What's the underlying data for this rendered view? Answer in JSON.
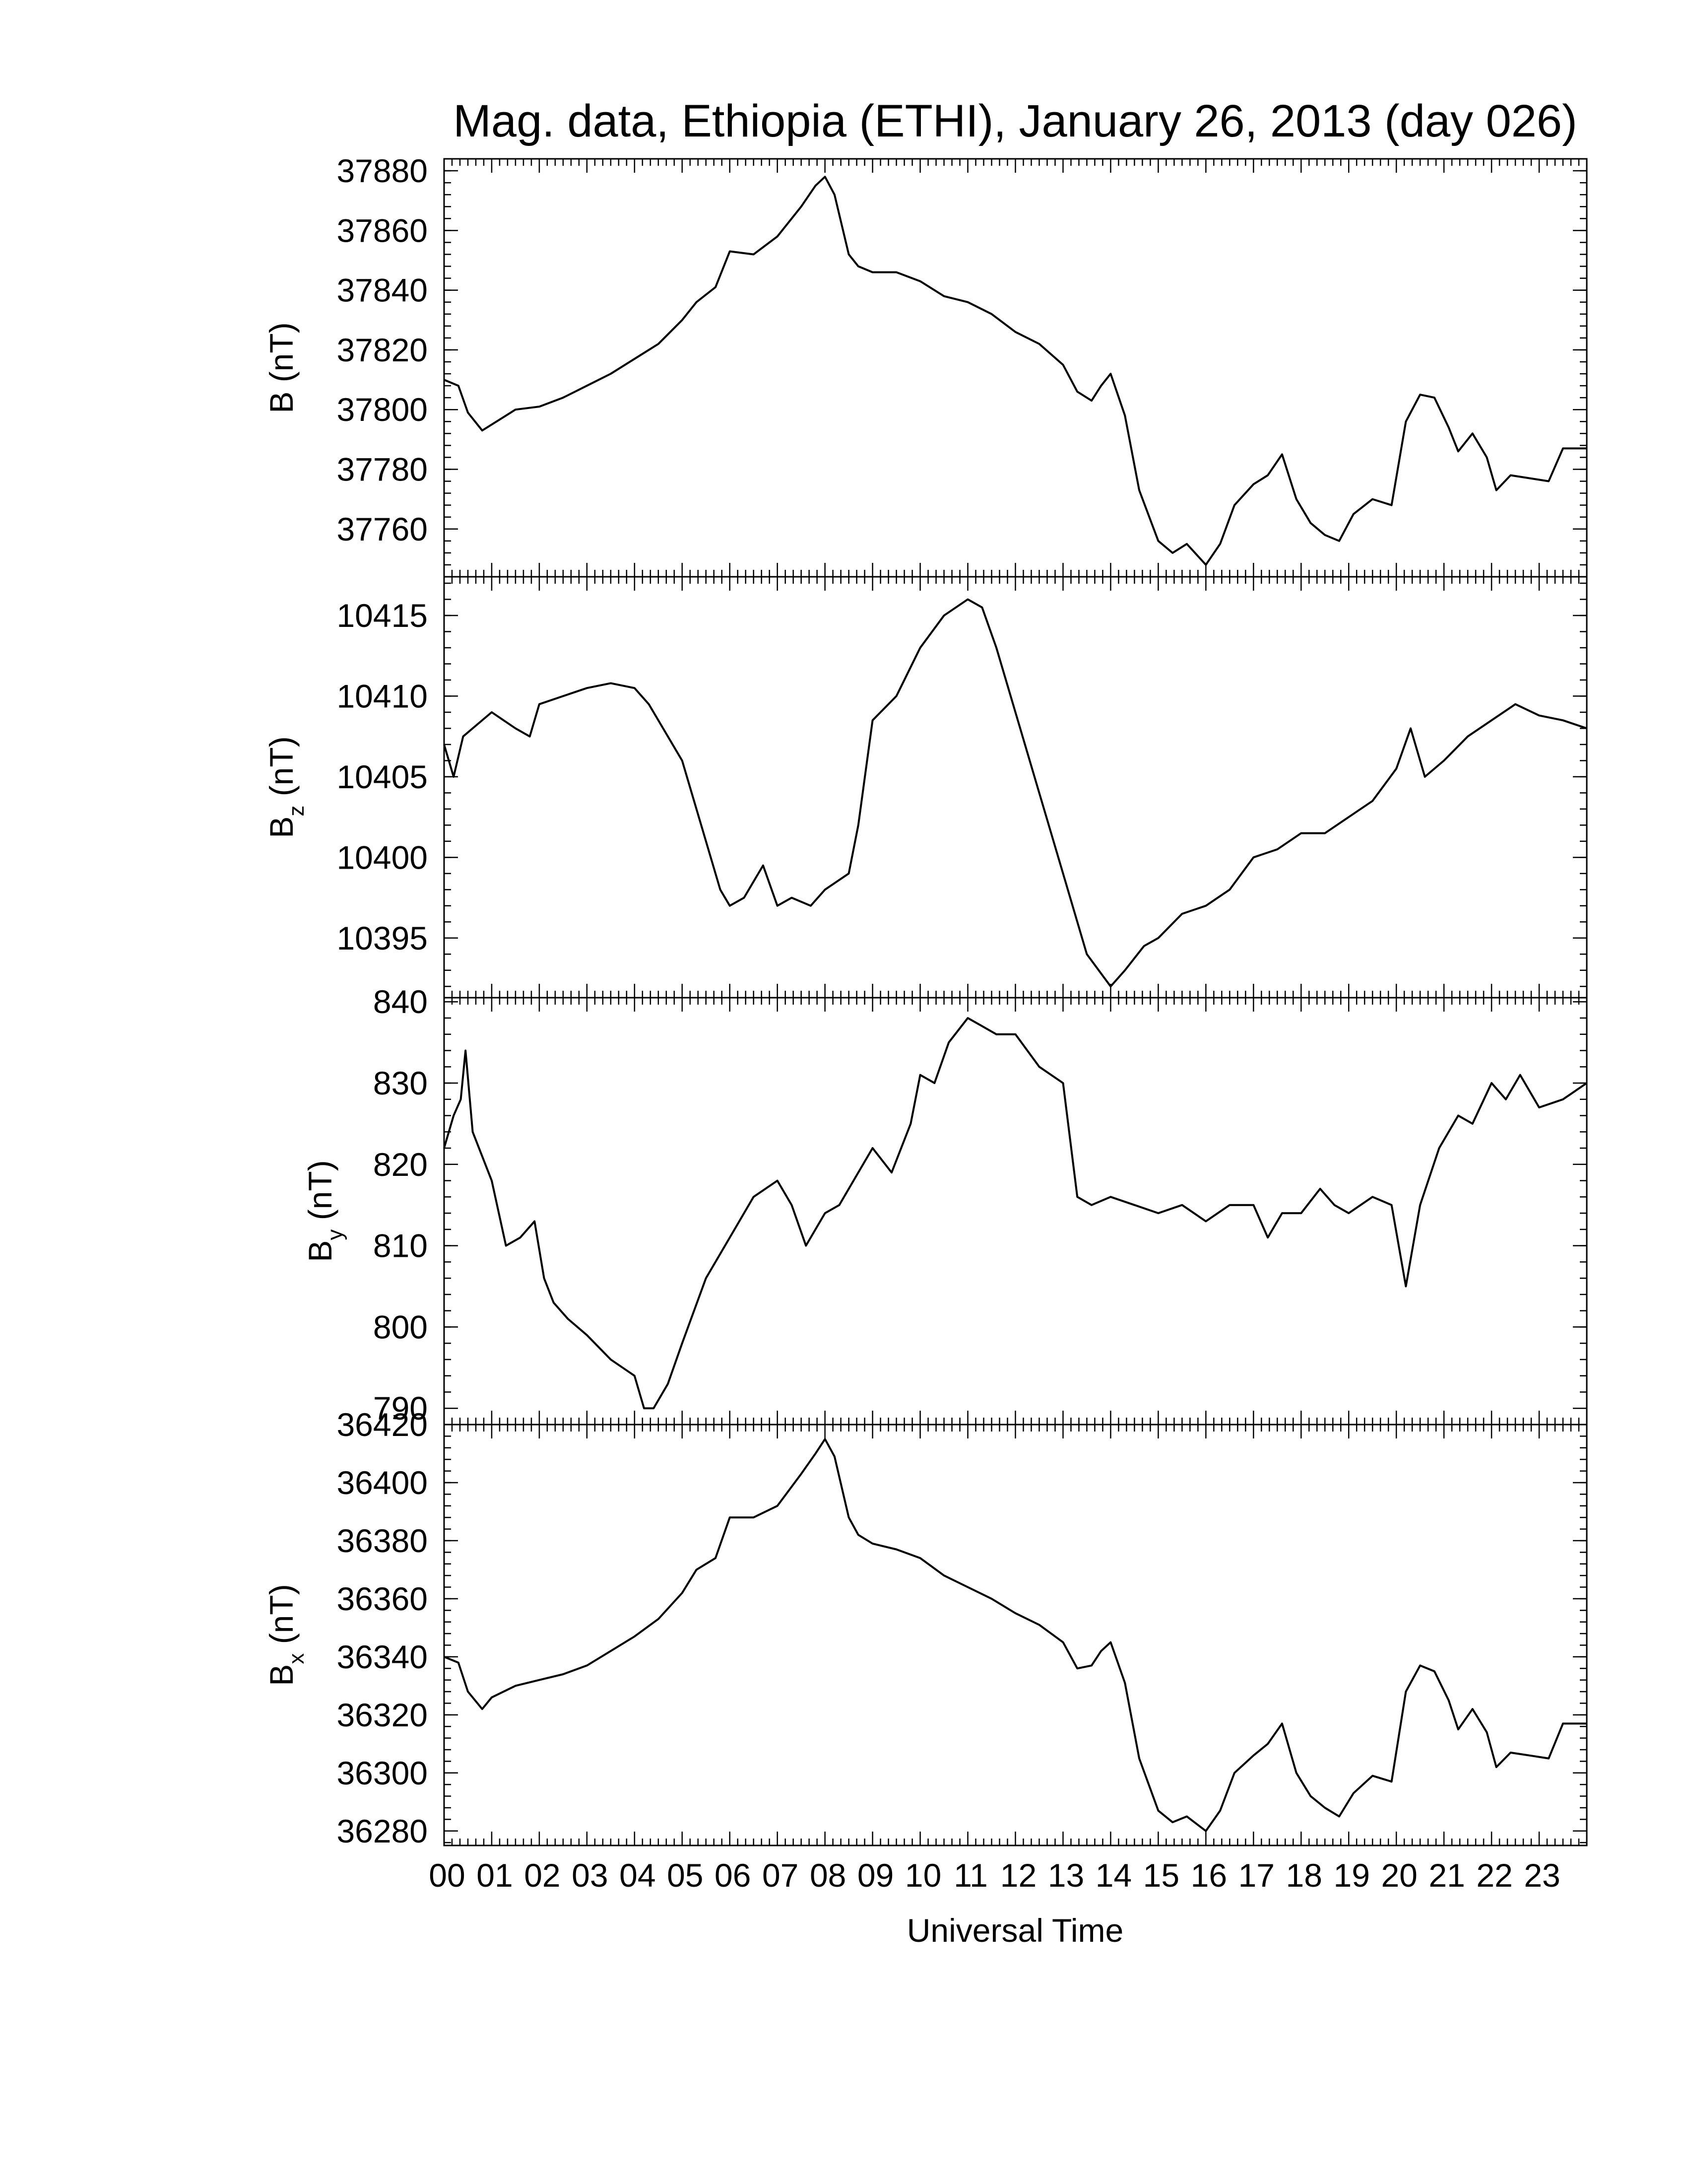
{
  "chart_data": {
    "type": "line",
    "title": "Mag. data, Ethiopia (ETHI), January 26, 2013 (day 026)",
    "xlabel": "Universal Time",
    "x_unit": "hours",
    "xlim": [
      0,
      24
    ],
    "x_ticks": [
      0,
      1,
      2,
      3,
      4,
      5,
      6,
      7,
      8,
      9,
      10,
      11,
      12,
      13,
      14,
      15,
      16,
      17,
      18,
      19,
      20,
      21,
      22,
      23
    ],
    "x_tick_labels": [
      "00",
      "01",
      "02",
      "03",
      "04",
      "05",
      "06",
      "07",
      "08",
      "09",
      "10",
      "11",
      "12",
      "13",
      "14",
      "15",
      "16",
      "17",
      "18",
      "19",
      "20",
      "21",
      "22",
      "23"
    ],
    "line_color": "#000000",
    "panels": [
      {
        "ylabel": "B (nT)",
        "ylabel_main": "B",
        "ylabel_sub": "",
        "ylabel_unit": "(nT)",
        "ylim": [
          37744,
          37884
        ],
        "y_ticks": [
          37760,
          37780,
          37800,
          37820,
          37840,
          37860,
          37880
        ],
        "x": [
          0,
          0.3,
          0.5,
          0.8,
          1.0,
          1.5,
          2.0,
          2.5,
          3.0,
          3.5,
          4.0,
          4.5,
          5.0,
          5.3,
          5.7,
          6.0,
          6.5,
          7.0,
          7.5,
          7.8,
          8.0,
          8.2,
          8.5,
          8.7,
          9.0,
          9.5,
          10.0,
          10.5,
          11.0,
          11.5,
          12.0,
          12.5,
          13.0,
          13.3,
          13.6,
          13.8,
          14.0,
          14.3,
          14.6,
          15.0,
          15.3,
          15.6,
          16.0,
          16.3,
          16.6,
          17.0,
          17.3,
          17.6,
          17.9,
          18.2,
          18.5,
          18.8,
          19.1,
          19.5,
          19.9,
          20.2,
          20.5,
          20.8,
          21.1,
          21.3,
          21.6,
          21.9,
          22.1,
          22.4,
          22.8,
          23.2,
          23.5,
          24.0
        ],
        "y": [
          37810,
          37808,
          37799,
          37793,
          37795,
          37800,
          37801,
          37804,
          37808,
          37812,
          37817,
          37822,
          37830,
          37836,
          37841,
          37853,
          37852,
          37858,
          37868,
          37875,
          37878,
          37872,
          37852,
          37848,
          37846,
          37846,
          37843,
          37838,
          37836,
          37832,
          37826,
          37822,
          37815,
          37806,
          37803,
          37808,
          37812,
          37798,
          37773,
          37756,
          37752,
          37755,
          37748,
          37755,
          37768,
          37775,
          37778,
          37785,
          37770,
          37762,
          37758,
          37756,
          37765,
          37770,
          37768,
          37796,
          37805,
          37804,
          37794,
          37786,
          37792,
          37784,
          37773,
          37778,
          37777,
          37776,
          37787,
          37787
        ]
      },
      {
        "ylabel": "Bz (nT)",
        "ylabel_main": "B",
        "ylabel_sub": "z",
        "ylabel_unit": "(nT)",
        "ylim": [
          10391.3,
          10417.4
        ],
        "y_ticks": [
          10395,
          10400,
          10405,
          10410,
          10415
        ],
        "x": [
          0,
          0.2,
          0.4,
          0.6,
          1.0,
          1.5,
          1.8,
          2.0,
          2.5,
          3.0,
          3.5,
          4.0,
          4.3,
          4.6,
          5.0,
          5.5,
          5.8,
          6.0,
          6.3,
          6.7,
          7.0,
          7.3,
          7.7,
          8.0,
          8.5,
          8.7,
          9.0,
          9.5,
          10.0,
          10.5,
          11.0,
          11.3,
          11.6,
          12.0,
          12.5,
          13.0,
          13.5,
          14.0,
          14.3,
          14.7,
          15.0,
          15.5,
          16.0,
          16.5,
          17.0,
          17.5,
          18.0,
          18.5,
          19.0,
          19.5,
          20.0,
          20.3,
          20.6,
          21.0,
          21.5,
          22.0,
          22.5,
          23.0,
          23.5,
          24.0
        ],
        "y": [
          10407,
          10405,
          10407.5,
          10408,
          10409,
          10408,
          10407.5,
          10409.5,
          10410,
          10410.5,
          10410.8,
          10410.5,
          10409.5,
          10408,
          10406,
          10401,
          10398,
          10397,
          10397.5,
          10399.5,
          10397,
          10397.5,
          10397,
          10398,
          10399,
          10402,
          10408.5,
          10410,
          10413,
          10415,
          10416,
          10415.5,
          10413,
          10409,
          10404,
          10399,
          10394,
          10392,
          10393,
          10394.5,
          10395,
          10396.5,
          10397,
          10398,
          10400,
          10400.5,
          10401.5,
          10401.5,
          10402.5,
          10403.5,
          10405.5,
          10408,
          10405,
          10406,
          10407.5,
          10408.5,
          10409.5,
          10408.8,
          10408.5,
          10408
        ]
      },
      {
        "ylabel": "By (nT)",
        "ylabel_main": "B",
        "ylabel_sub": "y",
        "ylabel_unit": "(nT)",
        "ylim": [
          788,
          840.5
        ],
        "y_ticks": [
          790,
          800,
          810,
          820,
          830,
          840
        ],
        "x": [
          0,
          0.2,
          0.35,
          0.45,
          0.6,
          1.0,
          1.3,
          1.6,
          1.9,
          2.1,
          2.3,
          2.6,
          3.0,
          3.5,
          4.0,
          4.2,
          4.4,
          4.7,
          5.0,
          5.5,
          6.0,
          6.5,
          7.0,
          7.3,
          7.6,
          8.0,
          8.3,
          8.6,
          9.0,
          9.4,
          9.8,
          10.0,
          10.3,
          10.6,
          11.0,
          11.3,
          11.6,
          12.0,
          12.5,
          13.0,
          13.3,
          13.6,
          14.0,
          14.5,
          15.0,
          15.5,
          16.0,
          16.5,
          17.0,
          17.3,
          17.6,
          18.0,
          18.4,
          18.7,
          19.0,
          19.5,
          19.9,
          20.2,
          20.5,
          20.9,
          21.3,
          21.6,
          22.0,
          22.3,
          22.6,
          23.0,
          23.5,
          24.0
        ],
        "y": [
          822,
          826,
          828,
          834,
          824,
          818,
          810,
          811,
          813,
          806,
          803,
          801,
          799,
          796,
          794,
          790,
          790,
          793,
          798,
          806,
          811,
          816,
          818,
          815,
          810,
          814,
          815,
          818,
          822,
          819,
          825,
          831,
          830,
          835,
          838,
          837,
          836,
          836,
          832,
          830,
          816,
          815,
          816,
          815,
          814,
          815,
          813,
          815,
          815,
          811,
          814,
          814,
          817,
          815,
          814,
          816,
          815,
          805,
          815,
          822,
          826,
          825,
          830,
          828,
          831,
          827,
          828,
          830
        ]
      },
      {
        "ylabel": "Bx (nT)",
        "ylabel_main": "B",
        "ylabel_sub": "x",
        "ylabel_unit": "(nT)",
        "ylim": [
          36275,
          36420
        ],
        "y_ticks": [
          36280,
          36300,
          36320,
          36340,
          36360,
          36380,
          36400,
          36420
        ],
        "x": [
          0,
          0.3,
          0.5,
          0.8,
          1.0,
          1.5,
          2.0,
          2.5,
          3.0,
          3.5,
          4.0,
          4.5,
          5.0,
          5.3,
          5.7,
          6.0,
          6.5,
          7.0,
          7.5,
          7.8,
          8.0,
          8.2,
          8.5,
          8.7,
          9.0,
          9.5,
          10.0,
          10.5,
          11.0,
          11.5,
          12.0,
          12.5,
          13.0,
          13.3,
          13.6,
          13.8,
          14.0,
          14.3,
          14.6,
          15.0,
          15.3,
          15.6,
          16.0,
          16.3,
          16.6,
          17.0,
          17.3,
          17.6,
          17.9,
          18.2,
          18.5,
          18.8,
          19.1,
          19.5,
          19.9,
          20.2,
          20.5,
          20.8,
          21.1,
          21.3,
          21.6,
          21.9,
          22.1,
          22.4,
          22.8,
          23.2,
          23.5,
          24.0
        ],
        "y": [
          36340,
          36338,
          36328,
          36322,
          36326,
          36330,
          36332,
          36334,
          36337,
          36342,
          36347,
          36353,
          36362,
          36370,
          36374,
          36388,
          36388,
          36392,
          36403,
          36410,
          36415,
          36409,
          36388,
          36382,
          36379,
          36377,
          36374,
          36368,
          36364,
          36360,
          36355,
          36351,
          36345,
          36336,
          36337,
          36342,
          36345,
          36331,
          36305,
          36287,
          36283,
          36285,
          36280,
          36287,
          36300,
          36306,
          36310,
          36317,
          36300,
          36292,
          36288,
          36285,
          36293,
          36299,
          36297,
          36328,
          36337,
          36335,
          36325,
          36315,
          36322,
          36314,
          36302,
          36307,
          36306,
          36305,
          36317,
          36317
        ]
      }
    ]
  }
}
